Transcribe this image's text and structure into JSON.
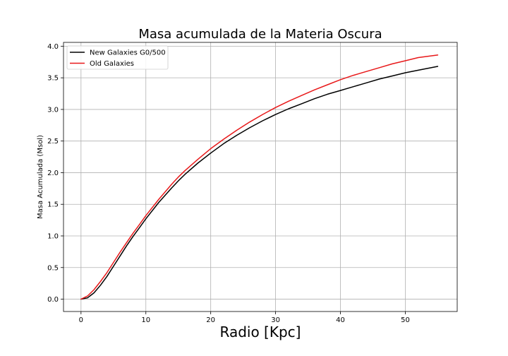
{
  "chart_data": {
    "type": "line",
    "title": "Masa acumulada de la Materia Oscura",
    "xlabel": "Radio [Kpc]",
    "ylabel": "Masa Acumulada (Msol)",
    "xlim": [
      -2.7,
      58.0
    ],
    "ylim": [
      -0.195,
      4.06
    ],
    "xticks": [
      0,
      10,
      20,
      30,
      40,
      50
    ],
    "yticks": [
      0.0,
      0.5,
      1.0,
      1.5,
      2.0,
      2.5,
      3.0,
      3.5,
      4.0
    ],
    "xtick_labels": [
      "0",
      "10",
      "20",
      "30",
      "40",
      "50"
    ],
    "ytick_labels": [
      "0.0",
      "0.5",
      "1.0",
      "1.5",
      "2.0",
      "2.5",
      "3.0",
      "3.5",
      "4.0"
    ],
    "grid": true,
    "legend_position": "top-left",
    "series": [
      {
        "name": "New Galaxies G0/500",
        "color": "#000000",
        "x": [
          0,
          1,
          2,
          3,
          4,
          5,
          6,
          7,
          8,
          9,
          10,
          12,
          14,
          15,
          16,
          18,
          20,
          22,
          24,
          26,
          28,
          30,
          32,
          34,
          36,
          38,
          40,
          42,
          44,
          46,
          48,
          50,
          52,
          55
        ],
        "y": [
          0.0,
          0.02,
          0.1,
          0.22,
          0.36,
          0.52,
          0.68,
          0.84,
          0.99,
          1.13,
          1.27,
          1.53,
          1.76,
          1.87,
          1.97,
          2.15,
          2.31,
          2.46,
          2.59,
          2.71,
          2.82,
          2.92,
          3.01,
          3.09,
          3.17,
          3.24,
          3.3,
          3.36,
          3.42,
          3.48,
          3.53,
          3.58,
          3.62,
          3.68
        ]
      },
      {
        "name": "Old Galaxies",
        "color": "#e8191a",
        "x": [
          0,
          1,
          2,
          3,
          4,
          5,
          6,
          7,
          8,
          9,
          10,
          12,
          14,
          15,
          16,
          18,
          20,
          22,
          24,
          26,
          28,
          30,
          32,
          34,
          36,
          38,
          40,
          42,
          44,
          46,
          48,
          50,
          52,
          55
        ],
        "y": [
          0.0,
          0.05,
          0.15,
          0.28,
          0.42,
          0.58,
          0.74,
          0.89,
          1.04,
          1.18,
          1.32,
          1.58,
          1.82,
          1.93,
          2.03,
          2.21,
          2.38,
          2.53,
          2.67,
          2.8,
          2.92,
          3.03,
          3.13,
          3.22,
          3.31,
          3.39,
          3.47,
          3.54,
          3.6,
          3.66,
          3.72,
          3.77,
          3.82,
          3.86
        ]
      }
    ]
  }
}
